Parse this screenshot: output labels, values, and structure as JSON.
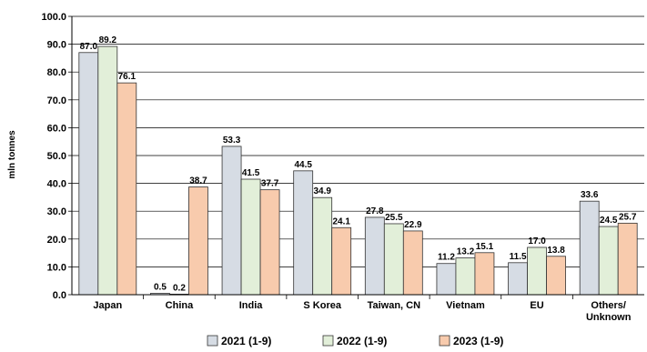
{
  "chart_data": {
    "type": "bar",
    "title": "",
    "xlabel": "",
    "ylabel": "mln tonnes",
    "ylim": [
      0,
      100
    ],
    "yticks": [
      "0.0",
      "10.0",
      "20.0",
      "30.0",
      "40.0",
      "50.0",
      "60.0",
      "70.0",
      "80.0",
      "90.0",
      "100.0"
    ],
    "grid": true,
    "legend_position": "bottom",
    "categories": [
      "Japan",
      "China",
      "India",
      "S Korea",
      "Taiwan, CN",
      "Vietnam",
      "EU",
      "Others/\nUnknown"
    ],
    "series": [
      {
        "name": "2021 (1-9)",
        "color": "#d6dce4",
        "values": [
          87.0,
          0.5,
          53.3,
          44.5,
          27.8,
          11.2,
          11.5,
          33.6
        ],
        "labels": [
          "87.0",
          "0.5",
          "53.3",
          "44.5",
          "27.8",
          "11.2",
          "11.5",
          "33.6"
        ]
      },
      {
        "name": "2022 (1-9)",
        "color": "#e2efd9",
        "values": [
          89.2,
          0.2,
          41.5,
          34.9,
          25.5,
          13.2,
          17.0,
          24.5
        ],
        "labels": [
          "89.2",
          "0.2",
          "41.5",
          "34.9",
          "25.5",
          "13.2",
          "17.0",
          "24.5"
        ]
      },
      {
        "name": "2023 (1-9)",
        "color": "#f8cbad",
        "values": [
          76.1,
          38.7,
          37.7,
          24.1,
          22.9,
          15.1,
          13.8,
          25.7
        ],
        "labels": [
          "76.1",
          "38.7",
          "37.7",
          "24.1",
          "22.9",
          "15.1",
          "13.8",
          "25.7"
        ]
      }
    ]
  }
}
